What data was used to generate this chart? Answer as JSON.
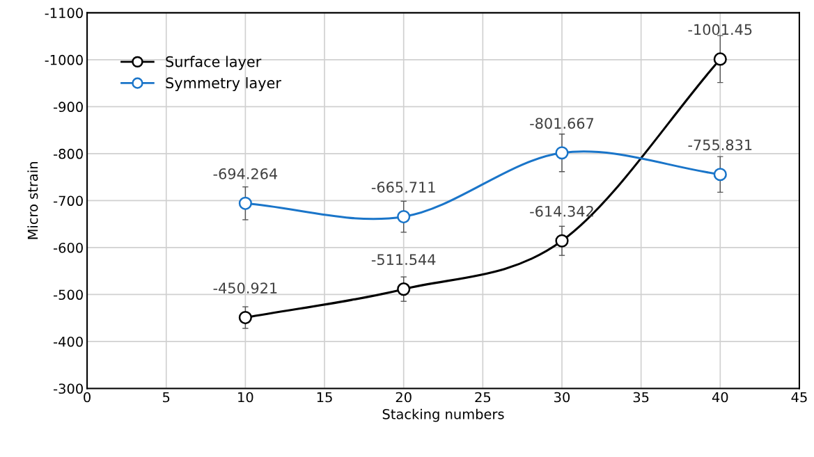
{
  "chart_data": {
    "type": "line",
    "xlabel": "Stacking numbers",
    "ylabel": "Micro strain",
    "x": [
      10,
      20,
      30,
      40
    ],
    "series": [
      {
        "name": "Surface layer",
        "color": "#000000",
        "values": [
          -450.921,
          -511.544,
          -614.342,
          -1001.45
        ],
        "errors": [
          23,
          26,
          31,
          50
        ]
      },
      {
        "name": "Symmetry layer",
        "color": "#1a75c9",
        "values": [
          -694.264,
          -665.711,
          -801.667,
          -755.831
        ],
        "errors": [
          35,
          33,
          40,
          38
        ]
      }
    ],
    "xlim": [
      0,
      45
    ],
    "xticks": [
      0,
      5,
      10,
      15,
      20,
      25,
      30,
      35,
      40,
      45
    ],
    "ylim": [
      -300,
      -1100
    ],
    "yticks": [
      -300,
      -400,
      -500,
      -600,
      -700,
      -800,
      -900,
      -1000,
      -1100
    ],
    "grid": true,
    "legend": "top left",
    "marker": "circle",
    "line_style": "solid",
    "data_labels": true
  }
}
